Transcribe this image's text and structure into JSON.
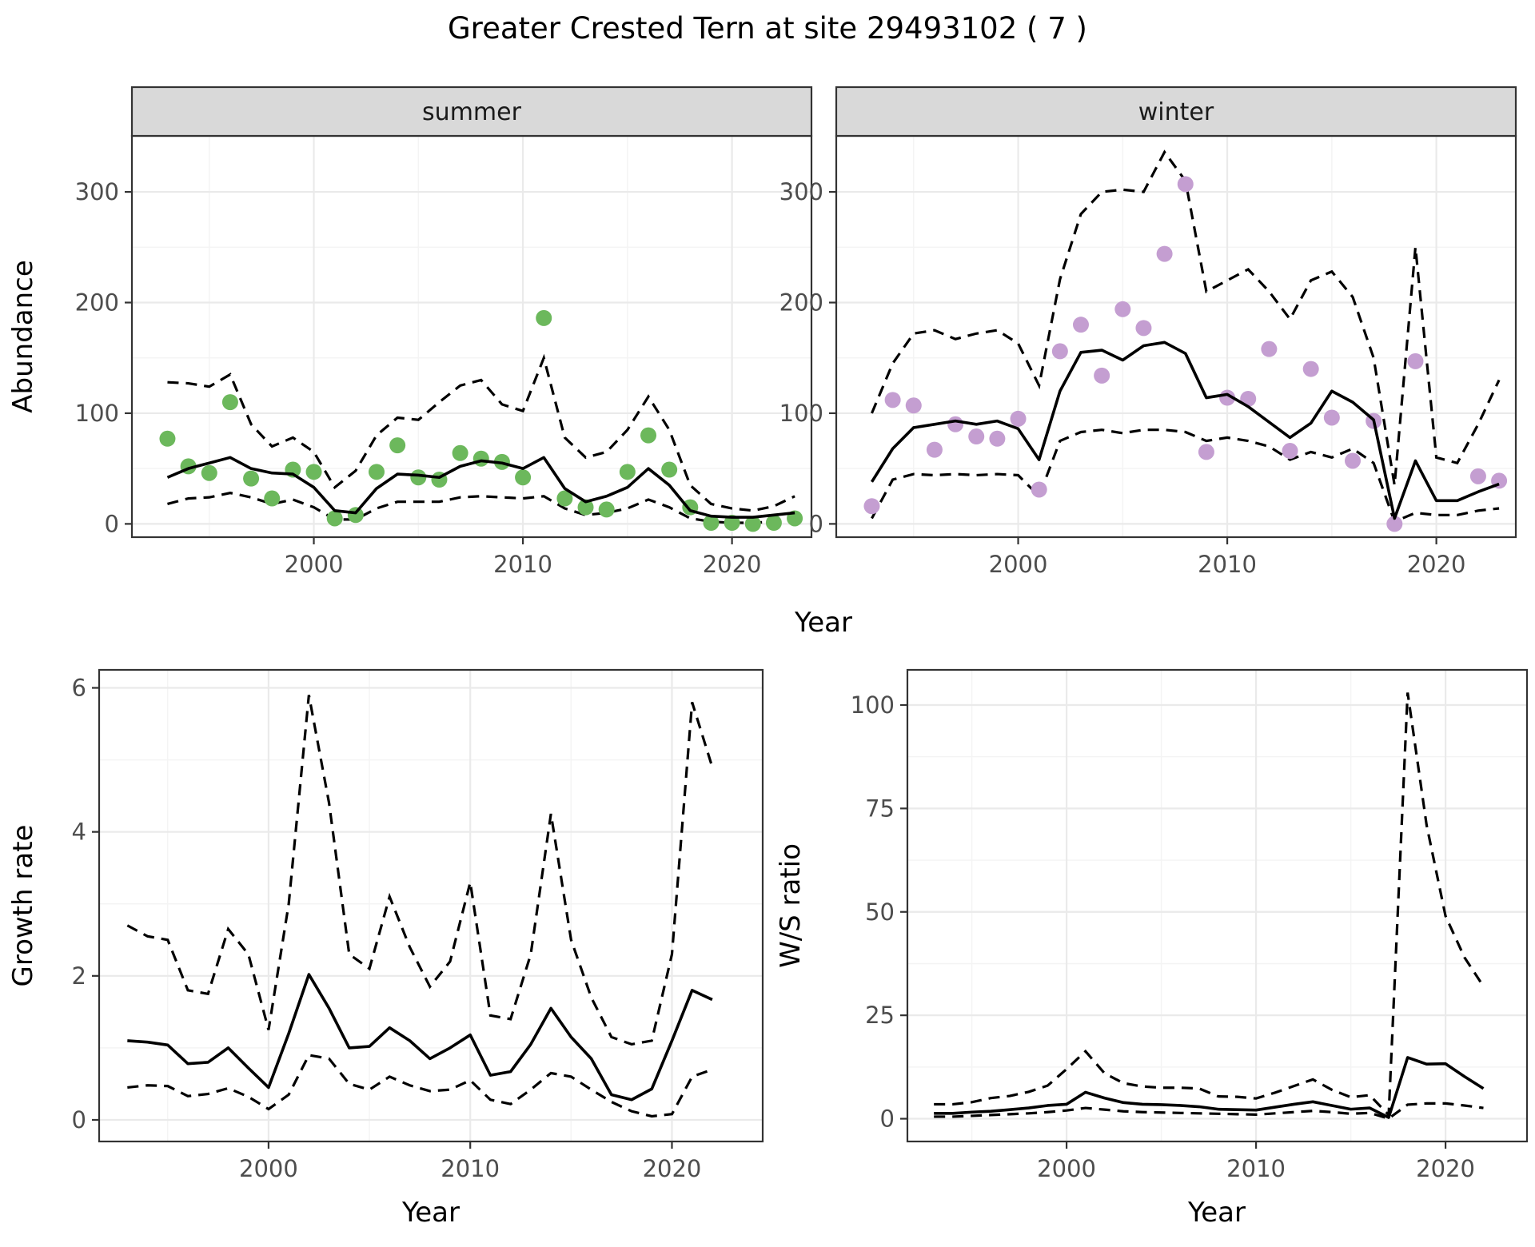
{
  "title": "Greater Crested Tern at site 29493102 ( 7 )",
  "style": {
    "summer_point_color": "#6CB85C",
    "winter_point_color": "#C49ED1",
    "line_color": "#000000",
    "panel_background": "#FFFFFF",
    "strip_background": "#D9D9D9",
    "border_color": "#333333",
    "grid_major_color": "#EAEAEA",
    "grid_minor_color": "#F4F4F4",
    "tick_label_color": "#4D4D4D",
    "point_radius": 10
  },
  "chart_data": [
    {
      "id": "abundance-summer",
      "type": "line",
      "facet_label": "summer",
      "ylabel": "Abundance",
      "xlabel": "Year",
      "legend": "none",
      "grid": true,
      "xlim": [
        1991.3,
        2023.8
      ],
      "ylim": [
        -12,
        350.6
      ],
      "xticks": [
        2000,
        2010,
        2020
      ],
      "xminor": [
        1995,
        2005,
        2015
      ],
      "yticks": [
        0,
        100,
        200,
        300
      ],
      "yminor": [
        50,
        150,
        250,
        350
      ],
      "x": [
        1993,
        1994,
        1995,
        1996,
        1997,
        1998,
        1999,
        2000,
        2001,
        2002,
        2003,
        2004,
        2005,
        2006,
        2007,
        2008,
        2009,
        2010,
        2011,
        2012,
        2013,
        2014,
        2015,
        2016,
        2017,
        2018,
        2019,
        2020,
        2021,
        2022,
        2023
      ],
      "series": [
        {
          "name": "ci-upper",
          "style": "dashed",
          "values": [
            128,
            127,
            124,
            135,
            90,
            70,
            78,
            65,
            33,
            48,
            80,
            96,
            94,
            110,
            125,
            130,
            108,
            102,
            150,
            78,
            60,
            65,
            85,
            115,
            85,
            35,
            18,
            14,
            12,
            16,
            25
          ]
        },
        {
          "name": "ci-lower",
          "style": "dashed",
          "values": [
            18,
            23,
            24,
            28,
            24,
            18,
            22,
            15,
            4,
            4,
            14,
            20,
            20,
            20,
            24,
            25,
            24,
            23,
            25,
            14,
            8,
            10,
            14,
            22,
            15,
            5,
            2,
            1,
            1,
            2,
            4
          ]
        },
        {
          "name": "observed-abundance",
          "style": "points",
          "color": "#6CB85C",
          "values": [
            77,
            52,
            46,
            110,
            41,
            23,
            49,
            47,
            5,
            8,
            47,
            71,
            42,
            40,
            64,
            59,
            56,
            42,
            186,
            23,
            15,
            13,
            47,
            80,
            49,
            15,
            1,
            1,
            0,
            1,
            5
          ]
        },
        {
          "name": "model-median",
          "style": "solid",
          "values": [
            42,
            50,
            55,
            60,
            50,
            46,
            45,
            33,
            12,
            10,
            32,
            45,
            44,
            42,
            52,
            57,
            55,
            50,
            60,
            32,
            20,
            25,
            33,
            50,
            35,
            12,
            7,
            6,
            6,
            8,
            10
          ]
        }
      ]
    },
    {
      "id": "abundance-winter",
      "type": "line",
      "facet_label": "winter",
      "ylabel": "Abundance",
      "xlabel": "Year",
      "legend": "none",
      "grid": true,
      "xlim": [
        1991.3,
        2023.8
      ],
      "ylim": [
        -12,
        350.6
      ],
      "xticks": [
        2000,
        2010,
        2020
      ],
      "xminor": [
        1995,
        2005,
        2015
      ],
      "yticks": [
        0,
        100,
        200,
        300
      ],
      "yminor": [
        50,
        150,
        250,
        350
      ],
      "x": [
        1993,
        1994,
        1995,
        1996,
        1997,
        1998,
        1999,
        2000,
        2001,
        2002,
        2003,
        2004,
        2005,
        2006,
        2007,
        2008,
        2009,
        2010,
        2011,
        2012,
        2013,
        2014,
        2015,
        2016,
        2017,
        2018,
        2019,
        2020,
        2021,
        2022,
        2023
      ],
      "series": [
        {
          "name": "ci-upper",
          "style": "dashed",
          "values": [
            100,
            145,
            172,
            175,
            167,
            172,
            175,
            163,
            125,
            221,
            280,
            300,
            302,
            300,
            336,
            310,
            210,
            220,
            230,
            210,
            185,
            220,
            228,
            205,
            150,
            35,
            250,
            60,
            55,
            90,
            130
          ]
        },
        {
          "name": "ci-lower",
          "style": "dashed",
          "values": [
            5,
            40,
            45,
            44,
            45,
            44,
            45,
            44,
            25,
            75,
            83,
            85,
            82,
            85,
            85,
            83,
            75,
            78,
            75,
            70,
            58,
            65,
            60,
            68,
            55,
            2,
            10,
            8,
            8,
            12,
            14
          ]
        },
        {
          "name": "observed-abundance",
          "style": "points",
          "color": "#C49ED1",
          "values": [
            16,
            112,
            107,
            67,
            90,
            79,
            77,
            95,
            31,
            156,
            180,
            134,
            194,
            177,
            244,
            307,
            65,
            114,
            113,
            158,
            66,
            140,
            96,
            57,
            93,
            0,
            147,
            null,
            null,
            43,
            39
          ]
        },
        {
          "name": "model-median",
          "style": "solid",
          "values": [
            38,
            68,
            87,
            90,
            93,
            90,
            93,
            86,
            58,
            120,
            155,
            157,
            148,
            161,
            164,
            154,
            114,
            117,
            106,
            92,
            78,
            91,
            120,
            110,
            94,
            5,
            57,
            21,
            21,
            29,
            36
          ]
        }
      ]
    },
    {
      "id": "growth-rate",
      "type": "line",
      "ylabel": "Growth rate",
      "xlabel": "Year",
      "legend": "none",
      "grid": true,
      "xlim": [
        1991.6,
        2024.5
      ],
      "ylim": [
        -0.3,
        6.25
      ],
      "xticks": [
        2000,
        2010,
        2020
      ],
      "xminor": [
        1995,
        2005,
        2015
      ],
      "yticks": [
        0,
        2,
        4,
        6
      ],
      "yminor": [
        1,
        3,
        5
      ],
      "x": [
        1993,
        1994,
        1995,
        1996,
        1997,
        1998,
        1999,
        2000,
        2001,
        2002,
        2003,
        2004,
        2005,
        2006,
        2007,
        2008,
        2009,
        2010,
        2011,
        2012,
        2013,
        2014,
        2015,
        2016,
        2017,
        2018,
        2019,
        2020,
        2021,
        2022
      ],
      "series": [
        {
          "name": "ci-upper",
          "style": "dashed",
          "values": [
            2.7,
            2.55,
            2.5,
            1.8,
            1.75,
            2.65,
            2.3,
            1.25,
            3.0,
            5.9,
            4.4,
            2.3,
            2.1,
            3.1,
            2.4,
            1.85,
            2.2,
            3.3,
            1.45,
            1.4,
            2.3,
            4.25,
            2.5,
            1.7,
            1.15,
            1.05,
            1.1,
            2.3,
            5.8,
            4.9
          ]
        },
        {
          "name": "ci-lower",
          "style": "dashed",
          "values": [
            0.45,
            0.48,
            0.47,
            0.33,
            0.36,
            0.44,
            0.32,
            0.15,
            0.35,
            0.9,
            0.85,
            0.5,
            0.42,
            0.6,
            0.48,
            0.4,
            0.42,
            0.55,
            0.28,
            0.22,
            0.42,
            0.65,
            0.6,
            0.42,
            0.25,
            0.12,
            0.05,
            0.08,
            0.6,
            0.7
          ]
        },
        {
          "name": "model-median",
          "style": "solid",
          "values": [
            1.1,
            1.08,
            1.04,
            0.78,
            0.8,
            1.0,
            0.72,
            0.45,
            1.2,
            2.02,
            1.55,
            1.0,
            1.02,
            1.28,
            1.1,
            0.85,
            1.0,
            1.18,
            0.62,
            0.67,
            1.05,
            1.55,
            1.15,
            0.85,
            0.35,
            0.28,
            0.43,
            1.1,
            1.8,
            1.67
          ]
        }
      ]
    },
    {
      "id": "ws-ratio",
      "type": "line",
      "ylabel": "W/S ratio",
      "xlabel": "Year",
      "legend": "none",
      "grid": true,
      "xlim": [
        1991.6,
        2024.3
      ],
      "ylim": [
        -5.5,
        108.5
      ],
      "xticks": [
        2000,
        2010,
        2020
      ],
      "xminor": [
        1995,
        2005,
        2015
      ],
      "yticks": [
        0,
        25,
        50,
        75,
        100
      ],
      "yminor": [
        12.5,
        37.5,
        62.5,
        87.5
      ],
      "x": [
        1993,
        1994,
        1995,
        1996,
        1997,
        1998,
        1999,
        2000,
        2001,
        2002,
        2003,
        2004,
        2005,
        2006,
        2007,
        2008,
        2009,
        2010,
        2011,
        2012,
        2013,
        2014,
        2015,
        2016,
        2017,
        2018,
        2019,
        2020,
        2021,
        2022
      ],
      "series": [
        {
          "name": "ci-upper",
          "style": "dashed",
          "values": [
            3.5,
            3.5,
            4.0,
            5.0,
            5.5,
            6.5,
            8.0,
            12.0,
            16.3,
            11.0,
            8.6,
            7.8,
            7.5,
            7.5,
            7.3,
            5.4,
            5.3,
            4.9,
            6.3,
            7.9,
            9.5,
            7.0,
            5.2,
            5.7,
            0.9,
            103.0,
            71.0,
            49.0,
            39.0,
            32.0
          ]
        },
        {
          "name": "ci-lower",
          "style": "dashed",
          "values": [
            0.5,
            0.5,
            0.7,
            0.9,
            1.1,
            1.3,
            1.6,
            2.0,
            2.6,
            2.2,
            1.8,
            1.6,
            1.5,
            1.4,
            1.3,
            1.2,
            1.1,
            1.0,
            1.3,
            1.6,
            1.9,
            1.6,
            1.2,
            1.4,
            0.05,
            3.4,
            3.7,
            3.7,
            3.2,
            2.6
          ]
        },
        {
          "name": "model-median",
          "style": "solid",
          "values": [
            1.3,
            1.3,
            1.6,
            1.8,
            2.2,
            2.6,
            3.2,
            3.5,
            6.4,
            5.0,
            3.9,
            3.5,
            3.4,
            3.2,
            2.9,
            2.3,
            2.2,
            2.1,
            2.8,
            3.5,
            4.1,
            3.2,
            2.3,
            2.6,
            0.3,
            14.8,
            13.2,
            13.3,
            10.2,
            7.3
          ]
        }
      ]
    }
  ]
}
